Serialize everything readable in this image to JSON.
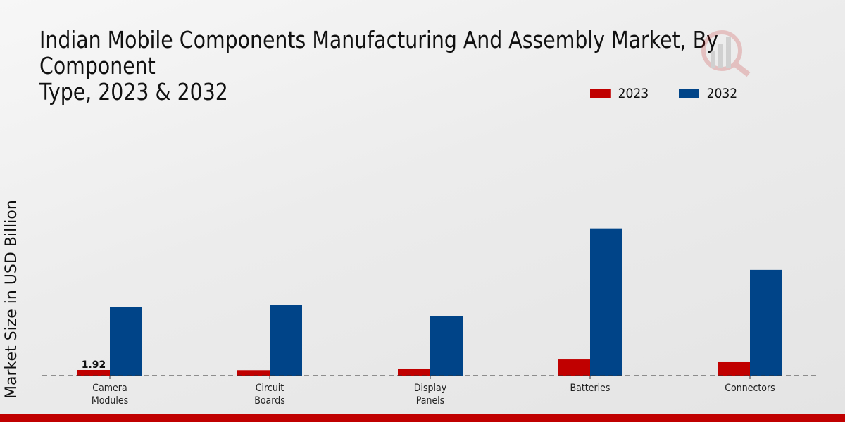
{
  "chart_data": {
    "type": "bar",
    "title": "Indian Mobile Components Manufacturing And Assembly Market, By Component\nType, 2023 & 2032",
    "xlabel": "",
    "ylabel": "Market Size in USD Billion",
    "categories": [
      "Camera\nModules",
      "Circuit\nBoards",
      "Display\nPanels",
      "Batteries",
      "Connectors"
    ],
    "series": [
      {
        "name": "2023",
        "color": "#c00000",
        "values": [
          1.92,
          1.85,
          2.4,
          5.5,
          4.8
        ]
      },
      {
        "name": "2032",
        "color": "#004488",
        "values": [
          23.3,
          24.2,
          20.2,
          50.2,
          36.0
        ]
      }
    ],
    "data_labels": [
      {
        "series": "2023",
        "category_index": 0,
        "text": "1.92"
      }
    ],
    "ylim": [
      0,
      60
    ],
    "grid": false,
    "legend_position": "top-right"
  }
}
